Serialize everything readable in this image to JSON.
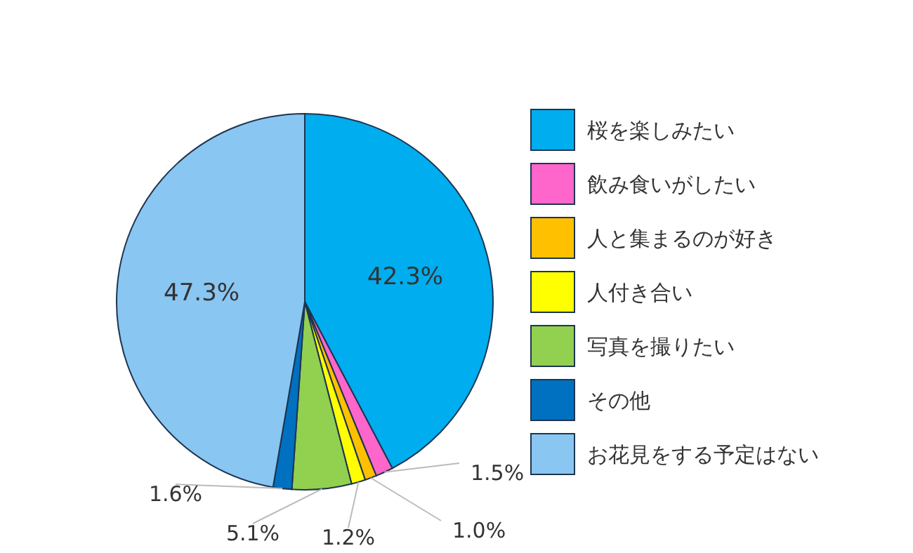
{
  "chart_data": {
    "type": "pie",
    "categories": [
      "桜を楽しみたい",
      "飲み食いがしたい",
      "人と集まるのが好き",
      "人付き合い",
      "写真を撮りたい",
      "その他",
      "お花見をする予定はない"
    ],
    "values": [
      42.3,
      1.5,
      1.0,
      1.2,
      5.1,
      1.6,
      47.3
    ],
    "colors": [
      "#00adef",
      "#ff66cc",
      "#ffc000",
      "#ffff00",
      "#92d050",
      "#0070c0",
      "#8ac6f2"
    ],
    "value_labels": [
      "42.3%",
      "1.5%",
      "1.0%",
      "1.2%",
      "5.1%",
      "1.6%",
      "47.3%"
    ],
    "legend": "right"
  }
}
